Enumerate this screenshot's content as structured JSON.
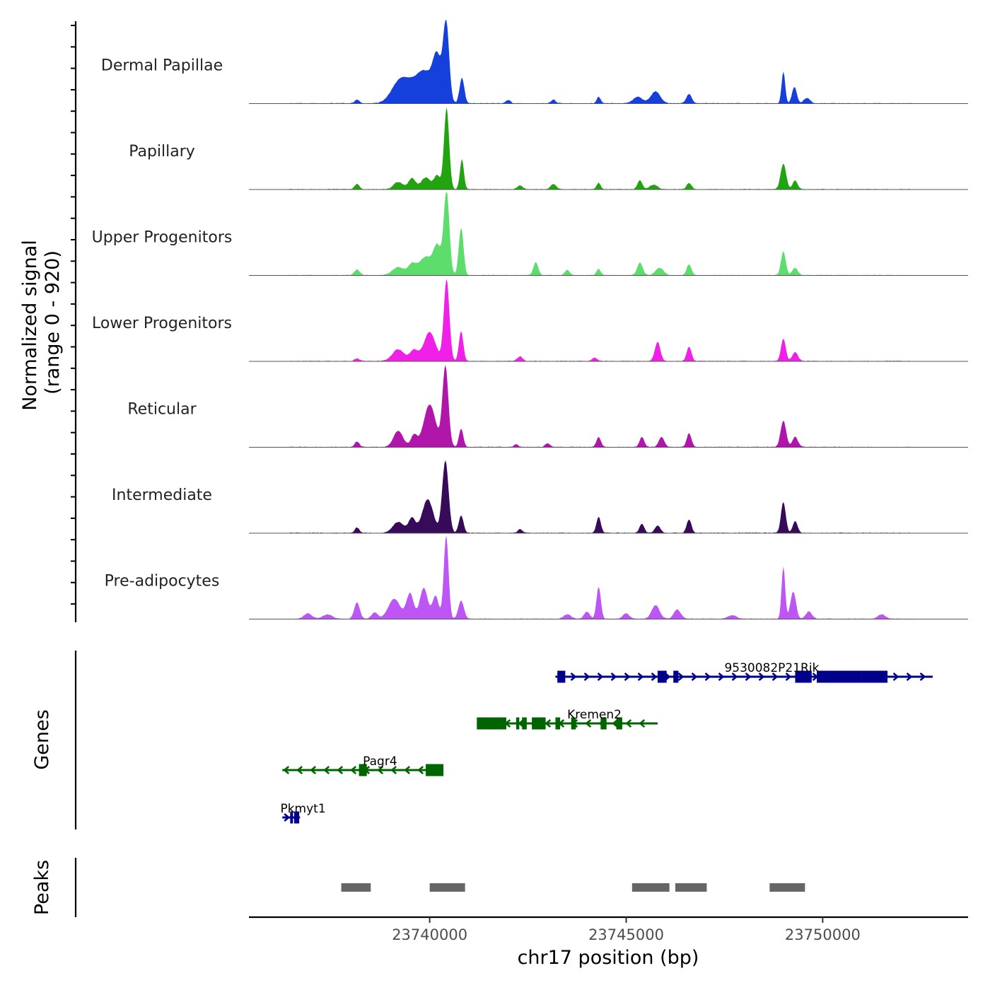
{
  "chart_data": {
    "type": "area",
    "title": "",
    "xlabel": "chr17 position (bp)",
    "ylabel_line1": "Normalized signal",
    "ylabel_line2": "(range 0 - 920)",
    "ylim": [
      0,
      920
    ],
    "xlim": [
      23735400,
      23753700
    ],
    "x_ticks": [
      23740000,
      23745000,
      23750000
    ],
    "x_tick_labels": [
      "23740000",
      "23745000",
      "23750000"
    ],
    "peak_positions": [
      23738330,
      23740440,
      23740820,
      23742000,
      23743350,
      23745250,
      23746270,
      23746570,
      23749000,
      23749250
    ],
    "tracks": [
      {
        "name": "Dermal Papillae",
        "color": "#1540dc",
        "peaks": [
          [
            23738150,
            40,
            60
          ],
          [
            23739200,
            180,
            200
          ],
          [
            23739550,
            210,
            250
          ],
          [
            23739900,
            270,
            180
          ],
          [
            23740190,
            480,
            110
          ],
          [
            23740420,
            880,
            75
          ],
          [
            23740820,
            280,
            60
          ],
          [
            23742000,
            35,
            60
          ],
          [
            23743150,
            40,
            60
          ],
          [
            23744300,
            70,
            50
          ],
          [
            23745300,
            70,
            120
          ],
          [
            23745750,
            130,
            120
          ],
          [
            23746600,
            100,
            70
          ],
          [
            23749000,
            350,
            45
          ],
          [
            23749280,
            180,
            60
          ],
          [
            23749600,
            60,
            80
          ]
        ]
      },
      {
        "name": "Papillary",
        "color": "#22a411",
        "peaks": [
          [
            23738150,
            60,
            60
          ],
          [
            23739200,
            80,
            120
          ],
          [
            23739550,
            120,
            90
          ],
          [
            23739900,
            130,
            120
          ],
          [
            23740190,
            150,
            80
          ],
          [
            23740430,
            900,
            65
          ],
          [
            23740820,
            330,
            50
          ],
          [
            23742300,
            40,
            70
          ],
          [
            23743150,
            60,
            70
          ],
          [
            23744300,
            70,
            50
          ],
          [
            23745350,
            100,
            60
          ],
          [
            23745700,
            50,
            100
          ],
          [
            23746600,
            70,
            60
          ],
          [
            23749000,
            280,
            70
          ],
          [
            23749300,
            100,
            60
          ]
        ]
      },
      {
        "name": "Upper Progenitors",
        "color": "#5cdd6c",
        "peaks": [
          [
            23738150,
            60,
            70
          ],
          [
            23739200,
            90,
            150
          ],
          [
            23739550,
            110,
            100
          ],
          [
            23739900,
            200,
            170
          ],
          [
            23740200,
            300,
            100
          ],
          [
            23740430,
            920,
            70
          ],
          [
            23740800,
            520,
            60
          ],
          [
            23742700,
            140,
            60
          ],
          [
            23743500,
            60,
            60
          ],
          [
            23744300,
            70,
            50
          ],
          [
            23745350,
            140,
            70
          ],
          [
            23745850,
            80,
            100
          ],
          [
            23746600,
            120,
            60
          ],
          [
            23749000,
            260,
            60
          ],
          [
            23749300,
            80,
            70
          ]
        ]
      },
      {
        "name": "Lower Progenitors",
        "color": "#f020e8",
        "peaks": [
          [
            23738150,
            30,
            60
          ],
          [
            23739200,
            130,
            150
          ],
          [
            23739600,
            120,
            100
          ],
          [
            23740000,
            320,
            150
          ],
          [
            23740430,
            900,
            70
          ],
          [
            23740800,
            330,
            55
          ],
          [
            23742300,
            50,
            70
          ],
          [
            23744200,
            40,
            60
          ],
          [
            23745800,
            210,
            70
          ],
          [
            23746600,
            160,
            60
          ],
          [
            23749000,
            250,
            60
          ],
          [
            23749300,
            100,
            70
          ]
        ]
      },
      {
        "name": "Reticular",
        "color": "#b116ab",
        "peaks": [
          [
            23738150,
            60,
            60
          ],
          [
            23739200,
            180,
            120
          ],
          [
            23739600,
            130,
            80
          ],
          [
            23740000,
            470,
            150
          ],
          [
            23740400,
            890,
            75
          ],
          [
            23740800,
            200,
            55
          ],
          [
            23742200,
            30,
            50
          ],
          [
            23743000,
            40,
            60
          ],
          [
            23744300,
            110,
            55
          ],
          [
            23745400,
            110,
            60
          ],
          [
            23745900,
            110,
            70
          ],
          [
            23746600,
            150,
            60
          ],
          [
            23749000,
            290,
            70
          ],
          [
            23749300,
            110,
            70
          ]
        ]
      },
      {
        "name": "Intermediate",
        "color": "#370a5a",
        "peaks": [
          [
            23738150,
            60,
            60
          ],
          [
            23739200,
            120,
            140
          ],
          [
            23739550,
            160,
            90
          ],
          [
            23739950,
            370,
            140
          ],
          [
            23740400,
            800,
            80
          ],
          [
            23740800,
            190,
            60
          ],
          [
            23742300,
            40,
            60
          ],
          [
            23744300,
            180,
            55
          ],
          [
            23745400,
            100,
            60
          ],
          [
            23745800,
            80,
            70
          ],
          [
            23746600,
            150,
            60
          ],
          [
            23749000,
            340,
            60
          ],
          [
            23749300,
            130,
            60
          ]
        ]
      },
      {
        "name": "Pre-adipocytes",
        "color": "#be55f5",
        "peaks": [
          [
            23736900,
            60,
            100
          ],
          [
            23737400,
            50,
            120
          ],
          [
            23738150,
            180,
            70
          ],
          [
            23738600,
            70,
            80
          ],
          [
            23739100,
            220,
            150
          ],
          [
            23739500,
            280,
            90
          ],
          [
            23739850,
            340,
            100
          ],
          [
            23740150,
            250,
            80
          ],
          [
            23740420,
            920,
            60
          ],
          [
            23740800,
            200,
            70
          ],
          [
            23743500,
            50,
            90
          ],
          [
            23744000,
            80,
            70
          ],
          [
            23744300,
            350,
            55
          ],
          [
            23745000,
            60,
            80
          ],
          [
            23745750,
            150,
            100
          ],
          [
            23746300,
            100,
            90
          ],
          [
            23747700,
            40,
            100
          ],
          [
            23749000,
            580,
            45
          ],
          [
            23749250,
            300,
            70
          ],
          [
            23749650,
            80,
            80
          ],
          [
            23751500,
            50,
            90
          ]
        ]
      }
    ],
    "genes": [
      {
        "name": "9530082P21Rik",
        "strand": "+",
        "color": "#00008b",
        "row": 0,
        "label_x": 23747500,
        "start": 23743200,
        "end": 23752800,
        "exons": [
          [
            23743250,
            23743450
          ],
          [
            23745800,
            23746030
          ],
          [
            23746200,
            23746330
          ],
          [
            23749300,
            23749720
          ],
          [
            23749850,
            23751000
          ],
          [
            23751000,
            23751650
          ]
        ]
      },
      {
        "name": "Kremen2",
        "strand": "-",
        "color": "#006400",
        "row": 1,
        "label_x": 23743500,
        "start": 23741200,
        "end": 23745800,
        "exons": [
          [
            23741200,
            23741950
          ],
          [
            23742200,
            23742280
          ],
          [
            23742350,
            23742470
          ],
          [
            23742600,
            23742950
          ],
          [
            23743200,
            23743320
          ],
          [
            23743600,
            23743720
          ],
          [
            23744350,
            23744500
          ],
          [
            23744750,
            23744900
          ]
        ]
      },
      {
        "name": "Pagr4",
        "strand": "-",
        "color": "#006400",
        "row": 2,
        "label_x": 23738300,
        "start": 23736250,
        "end": 23740350,
        "exons": [
          [
            23738200,
            23738400
          ],
          [
            23739900,
            23740350
          ]
        ]
      },
      {
        "name": "Pkmyt1",
        "strand": "+",
        "color": "#00008b",
        "row": 3,
        "label_x": 23736200,
        "start": 23736250,
        "end": 23736700,
        "exons": [
          [
            23736450,
            23736520
          ],
          [
            23736550,
            23736680
          ]
        ]
      }
    ],
    "peak_regions": [
      [
        23737750,
        23738500
      ],
      [
        23740000,
        23740900
      ],
      [
        23745150,
        23746100
      ],
      [
        23746250,
        23747050
      ],
      [
        23748650,
        23749550
      ]
    ],
    "panel_labels": {
      "genes": "Genes",
      "peaks": "Peaks"
    }
  }
}
